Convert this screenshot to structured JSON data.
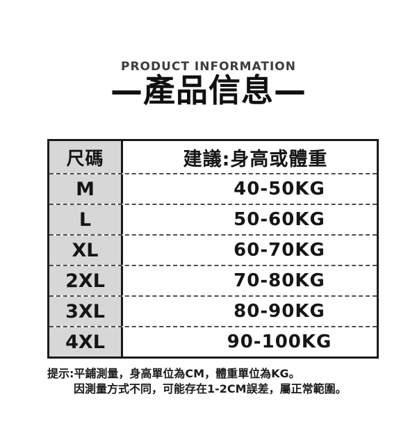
{
  "header": {
    "subtitle": "PRODUCT INFORMATION",
    "title": "—產品信息—"
  },
  "table": {
    "header": {
      "size_label": "尺碼",
      "suggestion_label": "建議:身高或體重"
    },
    "rows": [
      {
        "size": "M",
        "range": "40-50KG"
      },
      {
        "size": "L",
        "range": "50-60KG"
      },
      {
        "size": "XL",
        "range": "60-70KG"
      },
      {
        "size": "2XL",
        "range": "70-80KG"
      },
      {
        "size": "3XL",
        "range": "80-90KG"
      },
      {
        "size": "4XL",
        "range": "90-100KG"
      }
    ]
  },
  "notes": {
    "line1": "提示:平鋪測量，身高單位為CM，體重單位為KG。",
    "line2": "因測量方式不同，可能存在1-2CM誤差，屬正常範圍。"
  },
  "colors": {
    "size_column_bg": "#d7d7d7",
    "table_border": "#1a1a1a",
    "dashed_divider": "#4d4d4d",
    "title_text": "#101010",
    "subtitle_text": "#3c3c3c"
  },
  "chart_data": {
    "type": "table",
    "title": "產品信息 (PRODUCT INFORMATION)",
    "columns": [
      "尺碼",
      "建議:身高或體重"
    ],
    "rows": [
      [
        "M",
        "40-50KG"
      ],
      [
        "L",
        "50-60KG"
      ],
      [
        "XL",
        "60-70KG"
      ],
      [
        "2XL",
        "70-80KG"
      ],
      [
        "3XL",
        "80-90KG"
      ],
      [
        "4XL",
        "90-100KG"
      ]
    ]
  }
}
